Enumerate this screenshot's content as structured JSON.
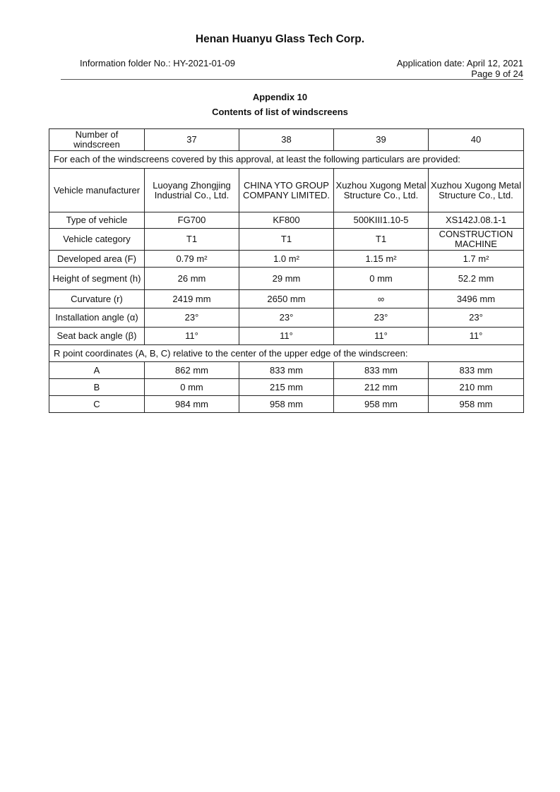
{
  "header": {
    "company": "Henan Huanyu Glass Tech Corp.",
    "folder": "Information folder No.: HY-2021-01-09",
    "date": "Application date: April 12, 2021",
    "page": "Page 9 of 24"
  },
  "appendix": "Appendix 10",
  "title": "Contents of list of windscreens",
  "table": {
    "number_label": "Number of windscreen",
    "numbers": [
      "37",
      "38",
      "39",
      "40"
    ],
    "intro": "For each of the windscreens covered by this approval, at least the following particulars are provided:",
    "rows": [
      {
        "label": "Vehicle manufacturer",
        "values": [
          "Luoyang Zhongjing Industrial Co., Ltd.",
          "CHINA YTO GROUP COMPANY LIMITED.",
          "Xuzhou Xugong Metal Structure Co., Ltd.",
          "Xuzhou Xugong Metal Structure Co., Ltd."
        ]
      },
      {
        "label": "Type of vehicle",
        "values": [
          "FG700",
          "KF800",
          "500KIII1.10-5",
          "XS142J.08.1-1"
        ]
      },
      {
        "label": "Vehicle category",
        "values": [
          "T1",
          "T1",
          "T1",
          "CONSTRUCTION MACHINE"
        ]
      },
      {
        "label": "Developed area (F)",
        "values": [
          "0.79 m²",
          "1.0 m²",
          "1.15 m²",
          "1.7 m²"
        ]
      },
      {
        "label": "Height of segment (h)",
        "values": [
          "26 mm",
          "29 mm",
          "0 mm",
          "52.2 mm"
        ]
      },
      {
        "label": "Curvature (r)",
        "values": [
          "2419 mm",
          "2650 mm",
          "∞",
          "3496 mm"
        ]
      },
      {
        "label": "Installation angle (α)",
        "values": [
          "23°",
          "23°",
          "23°",
          "23°"
        ]
      },
      {
        "label": "Seat back angle (β)",
        "values": [
          "11°",
          "11°",
          "11°",
          "11°"
        ]
      }
    ],
    "r_point_intro": "R point coordinates (A, B, C) relative to the center of the upper edge of the windscreen:",
    "r_rows": [
      {
        "label": "A",
        "values": [
          "862 mm",
          "833 mm",
          "833 mm",
          "833 mm"
        ]
      },
      {
        "label": "B",
        "values": [
          "0 mm",
          "215 mm",
          "212 mm",
          "210 mm"
        ]
      },
      {
        "label": "C",
        "values": [
          "984 mm",
          "958 mm",
          "958 mm",
          "958 mm"
        ]
      }
    ]
  }
}
